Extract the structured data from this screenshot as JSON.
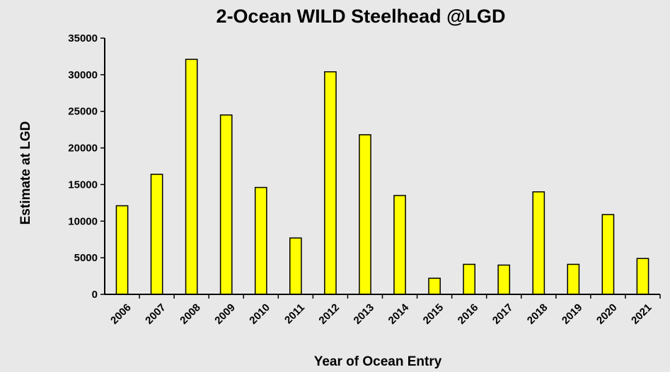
{
  "chart_data": {
    "type": "bar",
    "title": "2-Ocean WILD Steelhead @LGD",
    "xlabel": "Year of Ocean Entry",
    "ylabel": "Estimate at LGD",
    "ylim": [
      0,
      35000
    ],
    "yticks": [
      0,
      5000,
      10000,
      15000,
      20000,
      25000,
      30000,
      35000
    ],
    "categories": [
      "2006",
      "2007",
      "2008",
      "2009",
      "2010",
      "2011",
      "2012",
      "2013",
      "2014",
      "2015",
      "2016",
      "2017",
      "2018",
      "2019",
      "2020",
      "2021"
    ],
    "values": [
      12100,
      16400,
      32100,
      24500,
      14600,
      7700,
      30400,
      21800,
      13500,
      2200,
      4100,
      4000,
      14000,
      4100,
      10900,
      4900
    ],
    "bar_color": "#ffff00",
    "bar_border": "#000000",
    "background": "#e8e8e8",
    "grid": false
  }
}
